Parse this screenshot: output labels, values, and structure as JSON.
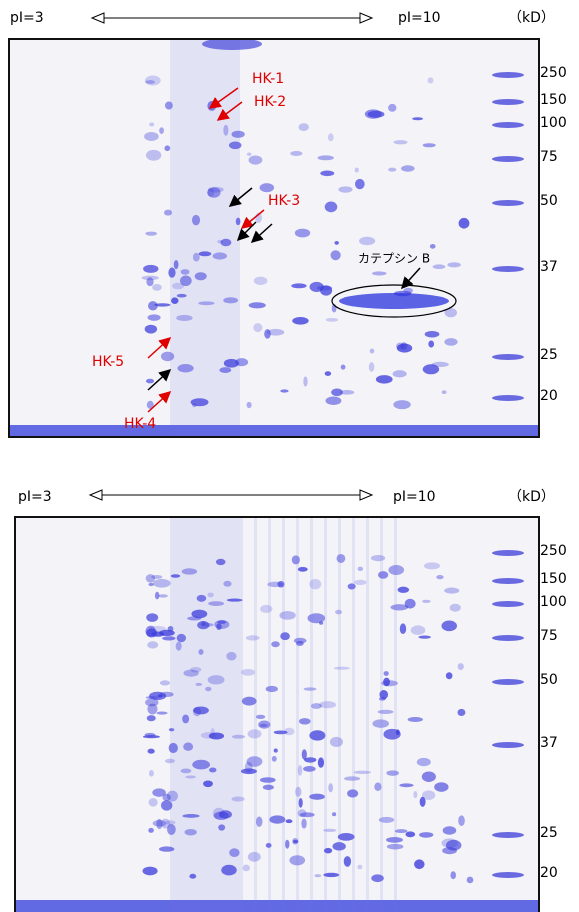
{
  "panels": [
    {
      "pi_low": "pI=3",
      "pi_high": "pI=10",
      "unit": "（kD）",
      "markers": [
        "250",
        "150",
        "100",
        "75",
        "50",
        "37",
        "25",
        "20"
      ],
      "annotations": [
        "HK-1",
        "HK-2",
        "HK-3",
        "HK-4",
        "HK-5",
        "カテプシン B"
      ]
    },
    {
      "pi_low": "pI=3",
      "pi_high": "pI=10",
      "unit": "（kD）",
      "markers": [
        "250",
        "150",
        "100",
        "75",
        "50",
        "37",
        "25",
        "20"
      ]
    }
  ]
}
